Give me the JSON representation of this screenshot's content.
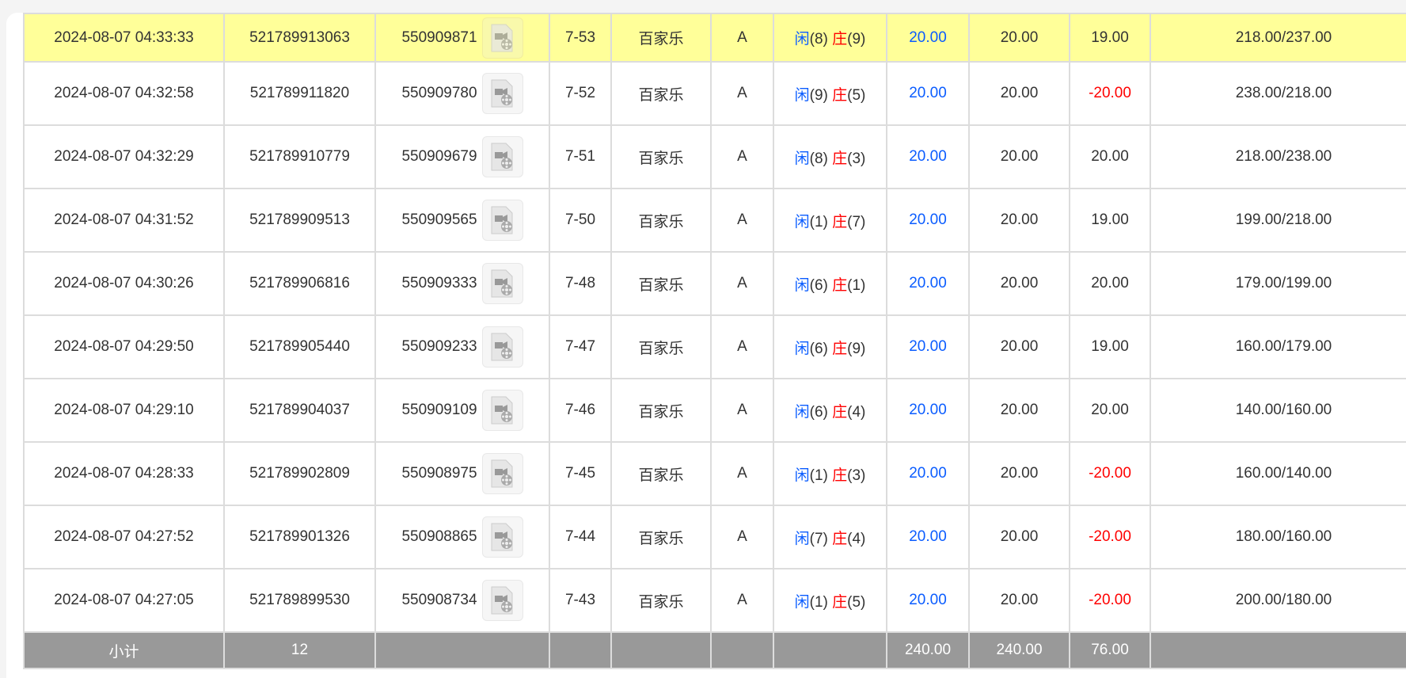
{
  "rows": [
    {
      "time": "2024-08-07 04:33:33",
      "order_id": "521789913063",
      "round_id": "550909871",
      "shoe": "7-53",
      "game": "百家乐",
      "table": "A",
      "player": "闲",
      "player_pts": "(8)",
      "banker": "庄",
      "banker_pts": "(9)",
      "bet": "20.00",
      "valid": "20.00",
      "win": "19.00",
      "win_neg": false,
      "balance": "218.00/237.00",
      "highlight": true
    },
    {
      "time": "2024-08-07 04:32:58",
      "order_id": "521789911820",
      "round_id": "550909780",
      "shoe": "7-52",
      "game": "百家乐",
      "table": "A",
      "player": "闲",
      "player_pts": "(9)",
      "banker": "庄",
      "banker_pts": "(5)",
      "bet": "20.00",
      "valid": "20.00",
      "win": "-20.00",
      "win_neg": true,
      "balance": "238.00/218.00"
    },
    {
      "time": "2024-08-07 04:32:29",
      "order_id": "521789910779",
      "round_id": "550909679",
      "shoe": "7-51",
      "game": "百家乐",
      "table": "A",
      "player": "闲",
      "player_pts": "(8)",
      "banker": "庄",
      "banker_pts": "(3)",
      "bet": "20.00",
      "valid": "20.00",
      "win": "20.00",
      "win_neg": false,
      "balance": "218.00/238.00"
    },
    {
      "time": "2024-08-07 04:31:52",
      "order_id": "521789909513",
      "round_id": "550909565",
      "shoe": "7-50",
      "game": "百家乐",
      "table": "A",
      "player": "闲",
      "player_pts": "(1)",
      "banker": "庄",
      "banker_pts": "(7)",
      "bet": "20.00",
      "valid": "20.00",
      "win": "19.00",
      "win_neg": false,
      "balance": "199.00/218.00"
    },
    {
      "time": "2024-08-07 04:30:26",
      "order_id": "521789906816",
      "round_id": "550909333",
      "shoe": "7-48",
      "game": "百家乐",
      "table": "A",
      "player": "闲",
      "player_pts": "(6)",
      "banker": "庄",
      "banker_pts": "(1)",
      "bet": "20.00",
      "valid": "20.00",
      "win": "20.00",
      "win_neg": false,
      "balance": "179.00/199.00"
    },
    {
      "time": "2024-08-07 04:29:50",
      "order_id": "521789905440",
      "round_id": "550909233",
      "shoe": "7-47",
      "game": "百家乐",
      "table": "A",
      "player": "闲",
      "player_pts": "(6)",
      "banker": "庄",
      "banker_pts": "(9)",
      "bet": "20.00",
      "valid": "20.00",
      "win": "19.00",
      "win_neg": false,
      "balance": "160.00/179.00"
    },
    {
      "time": "2024-08-07 04:29:10",
      "order_id": "521789904037",
      "round_id": "550909109",
      "shoe": "7-46",
      "game": "百家乐",
      "table": "A",
      "player": "闲",
      "player_pts": "(6)",
      "banker": "庄",
      "banker_pts": "(4)",
      "bet": "20.00",
      "valid": "20.00",
      "win": "20.00",
      "win_neg": false,
      "balance": "140.00/160.00"
    },
    {
      "time": "2024-08-07 04:28:33",
      "order_id": "521789902809",
      "round_id": "550908975",
      "shoe": "7-45",
      "game": "百家乐",
      "table": "A",
      "player": "闲",
      "player_pts": "(1)",
      "banker": "庄",
      "banker_pts": "(3)",
      "bet": "20.00",
      "valid": "20.00",
      "win": "-20.00",
      "win_neg": true,
      "balance": "160.00/140.00"
    },
    {
      "time": "2024-08-07 04:27:52",
      "order_id": "521789901326",
      "round_id": "550908865",
      "shoe": "7-44",
      "game": "百家乐",
      "table": "A",
      "player": "闲",
      "player_pts": "(7)",
      "banker": "庄",
      "banker_pts": "(4)",
      "bet": "20.00",
      "valid": "20.00",
      "win": "-20.00",
      "win_neg": true,
      "balance": "180.00/160.00"
    },
    {
      "time": "2024-08-07 04:27:05",
      "order_id": "521789899530",
      "round_id": "550908734",
      "shoe": "7-43",
      "game": "百家乐",
      "table": "A",
      "player": "闲",
      "player_pts": "(1)",
      "banker": "庄",
      "banker_pts": "(5)",
      "bet": "20.00",
      "valid": "20.00",
      "win": "-20.00",
      "win_neg": true,
      "balance": "200.00/180.00"
    }
  ],
  "subtotal": {
    "label": "小计",
    "count": "12",
    "bet": "240.00",
    "valid": "240.00",
    "win": "76.00"
  },
  "colors": {
    "highlight": "#ffff99",
    "player": "#0a5cff",
    "banker": "#ff0000",
    "subtotal_bg": "#999999"
  },
  "icons": {
    "replay": "video-file-icon"
  }
}
